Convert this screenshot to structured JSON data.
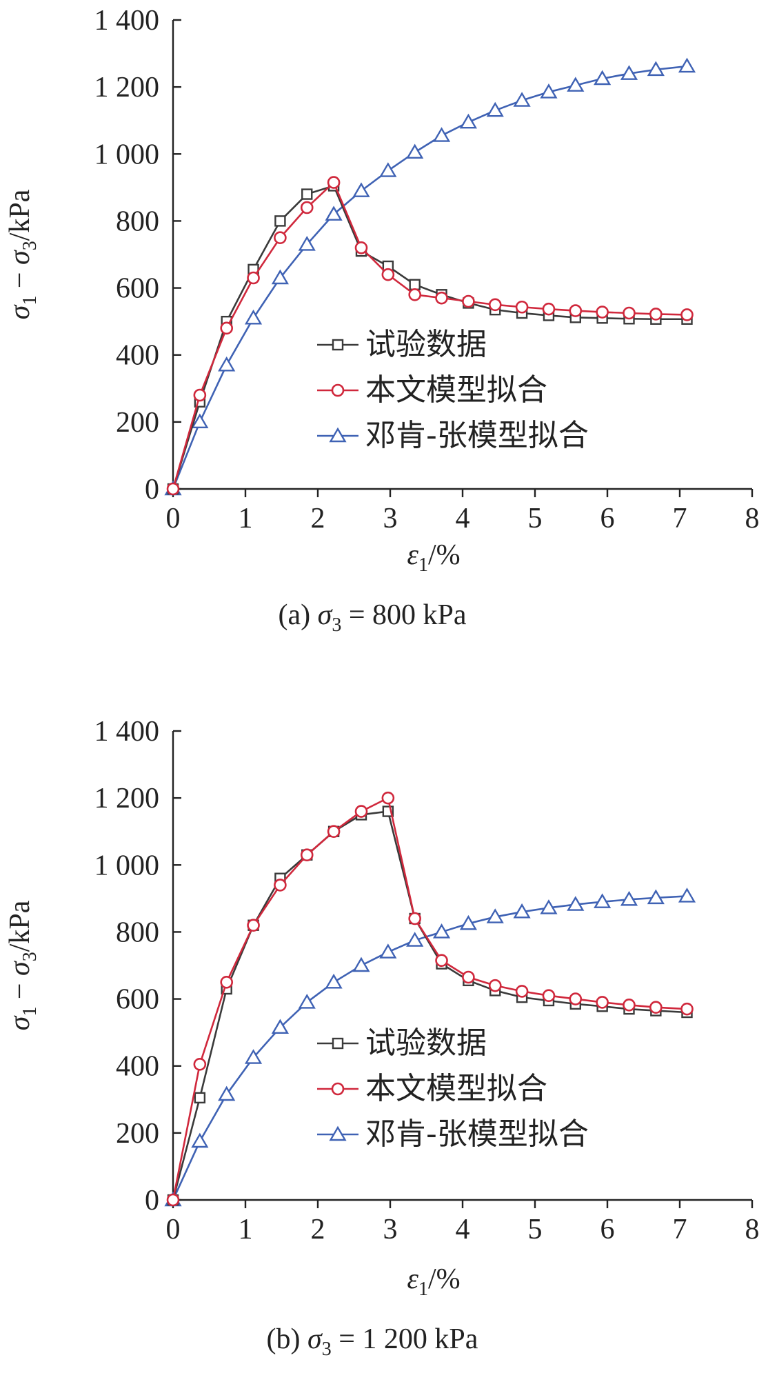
{
  "chart_data": [
    {
      "type": "line",
      "caption": "(a) σ3 = 800 kPa",
      "caption_parts": {
        "prefix": "(a) ",
        "sym": "σ",
        "sub": "3",
        "suffix": " = 800 kPa"
      },
      "xlabel": "ε1/%",
      "xlabel_parts": {
        "sym": "ε",
        "sub": "1",
        "suffix": "/%"
      },
      "ylabel": "σ1 − σ3/kPa",
      "ylabel_parts": {
        "sym1": "σ",
        "sub1": "1",
        "mid": " − ",
        "sym2": "σ",
        "sub2": "3",
        "suffix": "/kPa"
      },
      "xlim": [
        0,
        8
      ],
      "ylim": [
        0,
        1400
      ],
      "x_ticks": [
        "0",
        "1",
        "2",
        "3",
        "4",
        "5",
        "6",
        "7",
        "8"
      ],
      "y_ticks": [
        "0",
        "200",
        "400",
        "600",
        "800",
        "1 000",
        "1 200",
        "1 400"
      ],
      "grid": false,
      "legend_position": "center-right",
      "series": [
        {
          "name": "试验数据",
          "color": "#3a3a3a",
          "marker": "square",
          "x": [
            0,
            0.37,
            0.74,
            1.11,
            1.48,
            1.85,
            2.22,
            2.6,
            2.97,
            3.34,
            3.71,
            4.08,
            4.45,
            4.82,
            5.19,
            5.56,
            5.93,
            6.3,
            6.67,
            7.1
          ],
          "y": [
            0,
            260,
            500,
            655,
            800,
            880,
            905,
            710,
            665,
            610,
            580,
            555,
            535,
            525,
            518,
            512,
            510,
            508,
            507,
            507
          ]
        },
        {
          "name": "本文模型拟合",
          "color": "#d0283c",
          "marker": "circle",
          "x": [
            0,
            0.37,
            0.74,
            1.11,
            1.48,
            1.85,
            2.22,
            2.6,
            2.97,
            3.34,
            3.71,
            4.08,
            4.45,
            4.82,
            5.19,
            5.56,
            5.93,
            6.3,
            6.67,
            7.1
          ],
          "y": [
            0,
            280,
            480,
            630,
            750,
            840,
            915,
            720,
            640,
            580,
            570,
            560,
            550,
            543,
            537,
            532,
            528,
            525,
            522,
            520
          ]
        },
        {
          "name": "邓肯-张模型拟合",
          "color": "#3f62b4",
          "marker": "triangle",
          "x": [
            0,
            0.37,
            0.74,
            1.11,
            1.48,
            1.85,
            2.22,
            2.6,
            2.97,
            3.34,
            3.71,
            4.08,
            4.45,
            4.82,
            5.19,
            5.56,
            5.93,
            6.3,
            6.67,
            7.1
          ],
          "y": [
            0,
            200,
            370,
            510,
            630,
            730,
            820,
            890,
            950,
            1005,
            1055,
            1095,
            1130,
            1160,
            1185,
            1205,
            1225,
            1240,
            1252,
            1262
          ]
        }
      ]
    },
    {
      "type": "line",
      "caption": "(b) σ3 = 1 200 kPa",
      "caption_parts": {
        "prefix": "(b) ",
        "sym": "σ",
        "sub": "3",
        "suffix": " = 1 200 kPa"
      },
      "xlabel": "ε1/%",
      "xlabel_parts": {
        "sym": "ε",
        "sub": "1",
        "suffix": "/%"
      },
      "ylabel": "σ1 − σ3/kPa",
      "ylabel_parts": {
        "sym1": "σ",
        "sub1": "1",
        "mid": " − ",
        "sym2": "σ",
        "sub2": "3",
        "suffix": "/kPa"
      },
      "xlim": [
        0,
        8
      ],
      "ylim": [
        0,
        1400
      ],
      "x_ticks": [
        "0",
        "1",
        "2",
        "3",
        "4",
        "5",
        "6",
        "7",
        "8"
      ],
      "y_ticks": [
        "0",
        "200",
        "400",
        "600",
        "800",
        "1 000",
        "1 200",
        "1 400"
      ],
      "grid": false,
      "legend_position": "center-right",
      "series": [
        {
          "name": "试验数据",
          "color": "#3a3a3a",
          "marker": "square",
          "x": [
            0,
            0.37,
            0.74,
            1.11,
            1.48,
            1.85,
            2.22,
            2.6,
            2.97,
            3.34,
            3.71,
            4.08,
            4.45,
            4.82,
            5.19,
            5.56,
            5.93,
            6.3,
            6.67,
            7.1
          ],
          "y": [
            0,
            305,
            630,
            820,
            960,
            1030,
            1100,
            1150,
            1160,
            840,
            705,
            655,
            625,
            605,
            595,
            585,
            578,
            570,
            565,
            560
          ]
        },
        {
          "name": "本文模型拟合",
          "color": "#d0283c",
          "marker": "circle",
          "x": [
            0,
            0.37,
            0.74,
            1.11,
            1.48,
            1.85,
            2.22,
            2.6,
            2.97,
            3.34,
            3.71,
            4.08,
            4.45,
            4.82,
            5.19,
            5.56,
            5.93,
            6.3,
            6.67,
            7.1
          ],
          "y": [
            0,
            405,
            650,
            820,
            940,
            1030,
            1100,
            1160,
            1200,
            840,
            715,
            665,
            640,
            623,
            610,
            600,
            590,
            582,
            575,
            570
          ]
        },
        {
          "name": "邓肯-张模型拟合",
          "color": "#3f62b4",
          "marker": "triangle",
          "x": [
            0,
            0.37,
            0.74,
            1.11,
            1.48,
            1.85,
            2.22,
            2.6,
            2.97,
            3.34,
            3.71,
            4.08,
            4.45,
            4.82,
            5.19,
            5.56,
            5.93,
            6.3,
            6.67,
            7.1
          ],
          "y": [
            0,
            175,
            315,
            425,
            515,
            590,
            650,
            700,
            740,
            775,
            800,
            825,
            845,
            860,
            872,
            882,
            890,
            897,
            902,
            907
          ]
        }
      ]
    }
  ]
}
